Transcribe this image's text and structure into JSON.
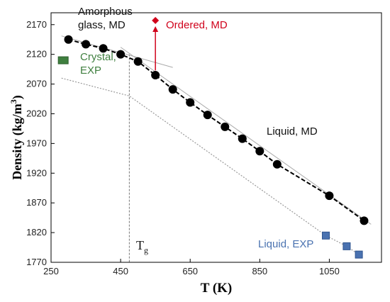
{
  "chart_data": {
    "type": "scatter",
    "xlabel": "T (K)",
    "ylabel_main": "Density (kg/m",
    "ylabel_sup": "3",
    "ylabel_close": ")",
    "xlim": [
      250,
      1200
    ],
    "ylim": [
      1770,
      2190
    ],
    "xticks": [
      250,
      450,
      650,
      850,
      1050
    ],
    "yticks": [
      1770,
      1820,
      1870,
      1920,
      1970,
      2020,
      2070,
      2120,
      2170
    ],
    "grid": false,
    "colors": {
      "md_points": "#000000",
      "ordered": "#d0021b",
      "crystal": "#3f7f3f",
      "liquid_exp": "#4a72b0",
      "exp_line": "#999999",
      "fit_line": "#000000"
    },
    "series": [
      {
        "name": "Amorphous glass, MD",
        "marker": "circle",
        "x": [
          300,
          350,
          400,
          450
        ],
        "y": [
          2145,
          2137,
          2130,
          2120
        ]
      },
      {
        "name": "Liquid, MD",
        "marker": "circle",
        "x": [
          500,
          550,
          600,
          650,
          700,
          750,
          800,
          850,
          900,
          1050,
          1150
        ],
        "y": [
          2108,
          2085,
          2061,
          2039,
          2018,
          1998,
          1978,
          1957,
          1935,
          1882,
          1840
        ]
      },
      {
        "name": "Ordered, MD",
        "marker": "diamond",
        "x": [
          550
        ],
        "y": [
          2177
        ]
      },
      {
        "name": "Crystal, EXP",
        "marker": "square",
        "x": [
          285
        ],
        "y": [
          2110
        ]
      },
      {
        "name": "Liquid, EXP",
        "marker": "square",
        "x": [
          1040,
          1100,
          1135
        ],
        "y": [
          1815,
          1797,
          1783
        ]
      }
    ],
    "annotations": {
      "amorphous_line1": "Amorphous",
      "amorphous_line2": "glass, MD",
      "ordered": "Ordered, MD",
      "crystal_line1": "Crystal,",
      "crystal_line2": "EXP",
      "liquid_md": "Liquid, MD",
      "liquid_exp": "Liquid, EXP",
      "tg_main": "T",
      "tg_sub": "g"
    },
    "tg_value": 475
  }
}
